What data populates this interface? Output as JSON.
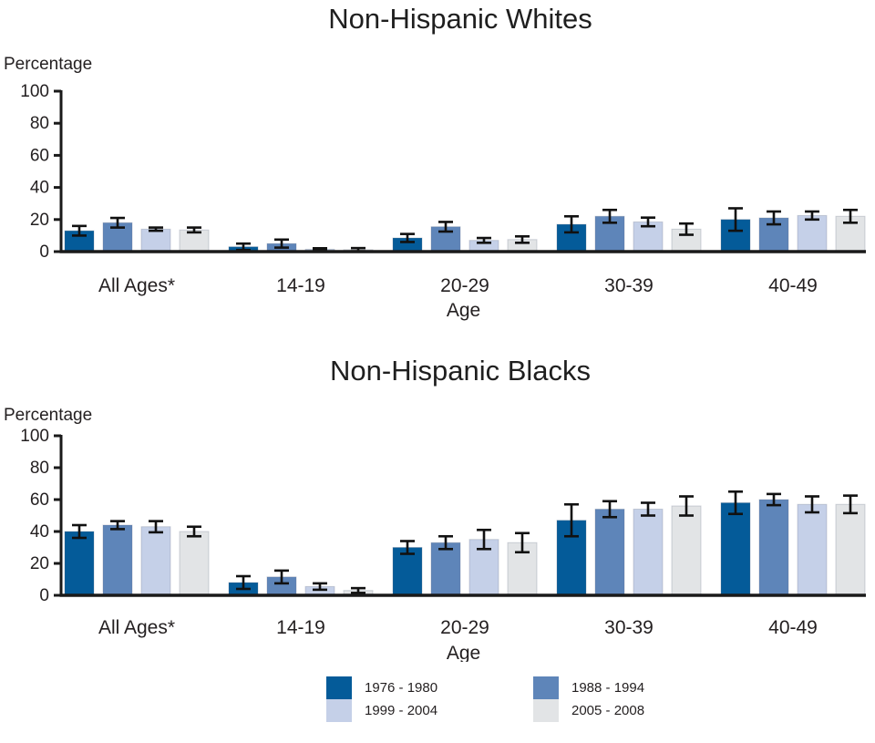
{
  "figure": {
    "y_axis_label": "Percentage",
    "x_axis_label": "Age"
  },
  "chart_data": [
    {
      "type": "bar",
      "title": "Non-Hispanic Whites",
      "xlabel": "Age",
      "ylabel": "Percentage",
      "ylim": [
        0,
        100
      ],
      "yticks": [
        0,
        20,
        40,
        60,
        80,
        100
      ],
      "grid": false,
      "legend_position": "shared-bottom",
      "error_bars": true,
      "categories": [
        "All Ages*",
        "14-19",
        "20-29",
        "30-39",
        "40-49"
      ],
      "series": [
        {
          "name": "1976 - 1980",
          "color": "#045B99",
          "values": [
            13,
            3,
            8.5,
            17,
            20
          ],
          "errors": [
            3,
            2,
            2.5,
            5,
            7
          ]
        },
        {
          "name": "1988 - 1994",
          "color": "#5E85B9",
          "values": [
            18,
            5,
            15.5,
            22,
            21
          ],
          "errors": [
            3,
            2.5,
            3,
            4,
            4
          ]
        },
        {
          "name": "1999 - 2004",
          "color": "#C5D0E8",
          "values": [
            14,
            1.5,
            7,
            18.5,
            22.5
          ],
          "errors": [
            1,
            0.6,
            1.5,
            2.7,
            2.5
          ]
        },
        {
          "name": "2005 - 2008",
          "color": "#E2E4E6",
          "values": [
            13.5,
            1.2,
            7.5,
            14,
            22
          ],
          "errors": [
            1.5,
            1,
            2,
            3.5,
            4
          ]
        }
      ]
    },
    {
      "type": "bar",
      "title": "Non-Hispanic Blacks",
      "xlabel": "Age",
      "ylabel": "Percentage",
      "ylim": [
        0,
        100
      ],
      "yticks": [
        0,
        20,
        40,
        60,
        80,
        100
      ],
      "grid": false,
      "legend_position": "shared-bottom",
      "error_bars": true,
      "categories": [
        "All Ages*",
        "14-19",
        "20-29",
        "30-39",
        "40-49"
      ],
      "series": [
        {
          "name": "1976 - 1980",
          "color": "#045B99",
          "values": [
            40,
            8,
            30,
            47,
            58
          ],
          "errors": [
            4,
            4,
            4,
            10,
            7
          ]
        },
        {
          "name": "1988 - 1994",
          "color": "#5E85B9",
          "values": [
            44,
            11.5,
            33,
            54,
            60
          ],
          "errors": [
            2.5,
            4,
            4,
            5,
            3.5
          ]
        },
        {
          "name": "1999 - 2004",
          "color": "#C5D0E8",
          "values": [
            43,
            5.5,
            35,
            54,
            57
          ],
          "errors": [
            3.5,
            2,
            6,
            4,
            5
          ]
        },
        {
          "name": "2005 - 2008",
          "color": "#E2E4E6",
          "values": [
            40,
            3,
            33,
            56,
            57
          ],
          "errors": [
            3,
            1.5,
            6,
            6,
            5.5
          ]
        }
      ]
    }
  ],
  "legend": {
    "items": [
      {
        "label": "1976 - 1980",
        "color": "#045B99"
      },
      {
        "label": "1988 - 1994",
        "color": "#5E85B9"
      },
      {
        "label": "1999 - 2004",
        "color": "#C5D0E8"
      },
      {
        "label": "2005 - 2008",
        "color": "#E2E4E6"
      }
    ]
  }
}
